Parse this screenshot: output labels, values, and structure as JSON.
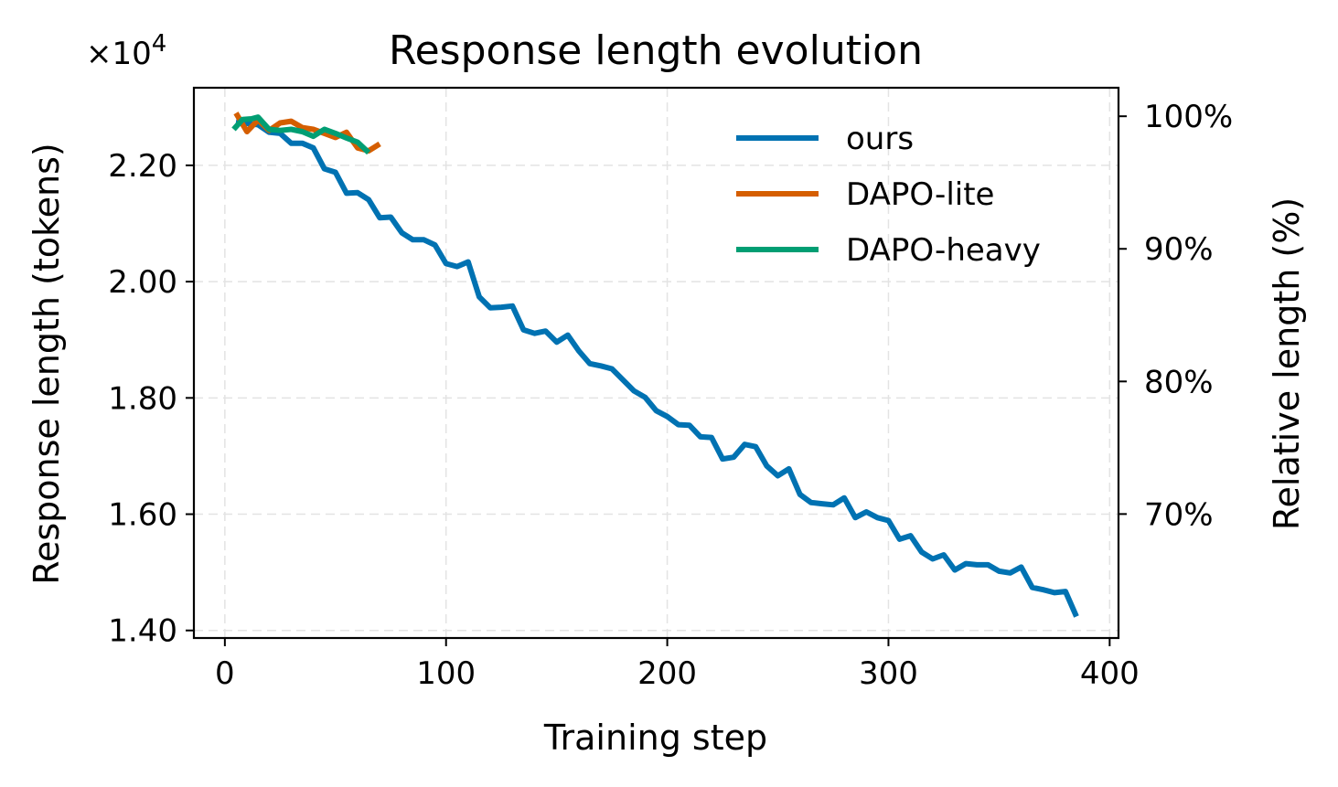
{
  "chart_data": {
    "type": "line",
    "title": "Response length evolution",
    "xlabel": "Training step",
    "ylabel": "Response length (tokens)",
    "y2label": "Relative length (%)",
    "y_scale_label": "×10⁴",
    "xlim": [
      -14,
      404
    ],
    "ylim": [
      1.387,
      2.3335
    ],
    "y2lim": [
      60.65,
      102.15
    ],
    "xticks": [
      0,
      100,
      200,
      300,
      400
    ],
    "xtick_labels": [
      "0",
      "100",
      "200",
      "300",
      "400"
    ],
    "yticks": [
      1.4,
      1.6,
      1.8,
      2.0,
      2.2
    ],
    "ytick_labels": [
      "1.40",
      "1.60",
      "1.80",
      "2.00",
      "2.20"
    ],
    "y2ticks": [
      70,
      80,
      90,
      100
    ],
    "y2tick_labels": [
      "70%",
      "80%",
      "90%",
      "100%"
    ],
    "grid": true,
    "legend_position": "top-right",
    "series": [
      {
        "name": "ours",
        "color": "#0072b2",
        "x": [
          5,
          10,
          15,
          20,
          25,
          30,
          35,
          40,
          45,
          50,
          55,
          60,
          65,
          70,
          75,
          80,
          85,
          90,
          95,
          100,
          105,
          110,
          115,
          120,
          125,
          130,
          135,
          140,
          145,
          150,
          155,
          160,
          165,
          170,
          175,
          180,
          185,
          190,
          195,
          200,
          205,
          210,
          215,
          220,
          225,
          230,
          235,
          240,
          245,
          250,
          255,
          260,
          265,
          270,
          275,
          280,
          285,
          290,
          295,
          300,
          305,
          310,
          315,
          320,
          325,
          330,
          335,
          340,
          345,
          350,
          355,
          360,
          365,
          370,
          375,
          380,
          385
        ],
        "values": [
          2.275,
          2.272,
          2.27,
          2.257,
          2.255,
          2.238,
          2.238,
          2.23,
          2.194,
          2.188,
          2.152,
          2.153,
          2.141,
          2.11,
          2.111,
          2.084,
          2.072,
          2.072,
          2.063,
          2.031,
          2.026,
          2.034,
          1.974,
          1.955,
          1.956,
          1.958,
          1.917,
          1.911,
          1.915,
          1.896,
          1.908,
          1.881,
          1.859,
          1.855,
          1.85,
          1.831,
          1.812,
          1.801,
          1.778,
          1.768,
          1.754,
          1.753,
          1.733,
          1.732,
          1.695,
          1.698,
          1.72,
          1.716,
          1.683,
          1.666,
          1.678,
          1.634,
          1.62,
          1.618,
          1.616,
          1.628,
          1.594,
          1.604,
          1.594,
          1.589,
          1.557,
          1.563,
          1.535,
          1.523,
          1.53,
          1.504,
          1.515,
          1.513,
          1.513,
          1.502,
          1.499,
          1.509,
          1.474,
          1.47,
          1.465,
          1.467,
          1.424
        ]
      },
      {
        "name": "DAPO-lite",
        "color": "#d55e00",
        "x": [
          5,
          10,
          15,
          20,
          25,
          30,
          35,
          40,
          45,
          50,
          55,
          60,
          65,
          70
        ],
        "values": [
          2.29,
          2.258,
          2.278,
          2.26,
          2.273,
          2.276,
          2.265,
          2.262,
          2.255,
          2.248,
          2.257,
          2.23,
          2.225,
          2.237
        ]
      },
      {
        "name": "DAPO-heavy",
        "color": "#009e73",
        "x": [
          4,
          8,
          12,
          15,
          20,
          25,
          30,
          35,
          40,
          45,
          50,
          55,
          60,
          65
        ],
        "values": [
          2.262,
          2.279,
          2.28,
          2.283,
          2.262,
          2.26,
          2.262,
          2.258,
          2.25,
          2.262,
          2.255,
          2.247,
          2.24,
          2.222
        ]
      }
    ]
  }
}
